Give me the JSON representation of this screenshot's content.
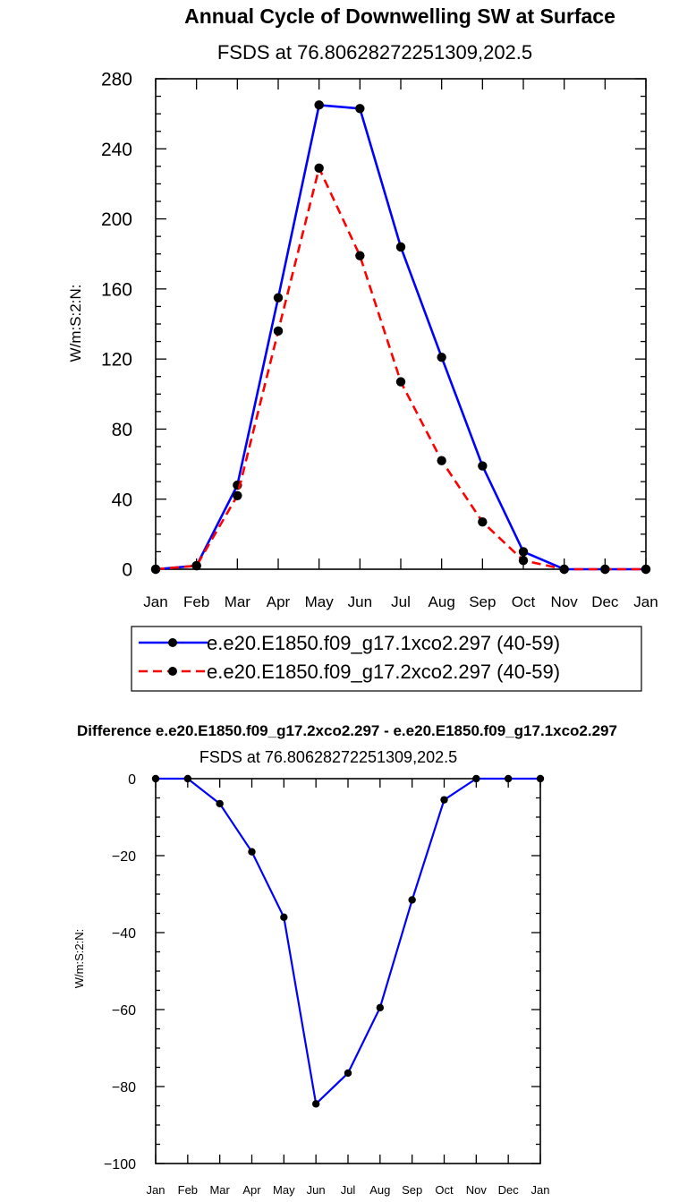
{
  "chart_data": [
    {
      "type": "line",
      "title": "Annual Cycle of Downwelling SW at Surface",
      "subtitle": "FSDS at 76.80628272251309,202.5",
      "ylabel": "W/m:S:2:N:",
      "xlabel": "",
      "categories": [
        "Jan",
        "Feb",
        "Mar",
        "Apr",
        "May",
        "Jun",
        "Jul",
        "Aug",
        "Sep",
        "Oct",
        "Nov",
        "Dec",
        "Jan"
      ],
      "ylim": [
        0,
        280
      ],
      "yticks": [
        "0",
        "40",
        "80",
        "120",
        "160",
        "200",
        "240",
        "280"
      ],
      "grid": false,
      "legend_position": "bottom",
      "series": [
        {
          "name": "e.e20.E1850.f09_g17.1xco2.297 (40-59)",
          "color": "#0000ff",
          "dash": "solid",
          "values": [
            0,
            2,
            48,
            155,
            265,
            263,
            184,
            121,
            59,
            10,
            0,
            0,
            0
          ]
        },
        {
          "name": "e.e20.E1850.f09_g17.2xco2.297 (40-59)",
          "color": "#ff0000",
          "dash": "dashed",
          "values": [
            0,
            2,
            42,
            136,
            229,
            179,
            107,
            62,
            27,
            5,
            0,
            0,
            0
          ]
        }
      ]
    },
    {
      "type": "line",
      "title": "Difference e.e20.E1850.f09_g17.2xco2.297 - e.e20.E1850.f09_g17.1xco2.297",
      "subtitle": "FSDS at 76.80628272251309,202.5",
      "ylabel": "W/m:S:2:N:",
      "xlabel": "",
      "categories": [
        "Jan",
        "Feb",
        "Mar",
        "Apr",
        "May",
        "Jun",
        "Jul",
        "Aug",
        "Sep",
        "Oct",
        "Nov",
        "Dec",
        "Jan"
      ],
      "ylim": [
        -100,
        0
      ],
      "yticks": [
        "0",
        "−20",
        "−40",
        "−60",
        "−80",
        "−100"
      ],
      "grid": false,
      "series": [
        {
          "color": "#0000ff",
          "dash": "solid",
          "values": [
            0,
            0,
            -6.5,
            -19,
            -36,
            -84.5,
            -76.5,
            -59.5,
            -31.5,
            -5.5,
            0,
            0,
            0
          ]
        }
      ]
    }
  ]
}
